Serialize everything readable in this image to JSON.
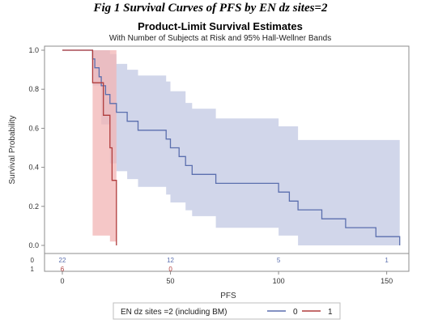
{
  "figure": {
    "caption": "Fig 1 Survival Curves of PFS by EN dz sites=2"
  },
  "chart_data": {
    "type": "line",
    "title": "Product-Limit Survival Estimates",
    "subtitle": "With Number of Subjects at Risk and 95% Hall-Wellner Bands",
    "xlabel": "PFS",
    "ylabel": "Survival Probability",
    "xlim": [
      0,
      158
    ],
    "ylim": [
      0,
      1.0
    ],
    "x_ticks": [
      0,
      50,
      100,
      150
    ],
    "x_tick_labels": [
      "0",
      "50",
      "100",
      "150"
    ],
    "y_ticks": [
      0,
      0.2,
      0.4,
      0.6,
      0.8,
      1.0
    ],
    "y_tick_labels": [
      "0.0",
      "0.2",
      "0.4",
      "0.6",
      "0.8",
      "1.0"
    ],
    "grid": false,
    "legend": {
      "title": "EN dz sites =2 (including BM)",
      "position": "bottom",
      "entries": [
        "0",
        "1"
      ]
    },
    "series": [
      {
        "name": "0",
        "color": "#5b6fae",
        "band_color": "#c9cfe6",
        "steps": [
          [
            0,
            1.0
          ],
          [
            14,
            1.0
          ],
          [
            14,
            0.955
          ],
          [
            15,
            0.955
          ],
          [
            15,
            0.91
          ],
          [
            17,
            0.91
          ],
          [
            17,
            0.864
          ],
          [
            18,
            0.864
          ],
          [
            18,
            0.818
          ],
          [
            20,
            0.818
          ],
          [
            20,
            0.773
          ],
          [
            22,
            0.773
          ],
          [
            22,
            0.727
          ],
          [
            25,
            0.727
          ],
          [
            25,
            0.682
          ],
          [
            30,
            0.682
          ],
          [
            30,
            0.636
          ],
          [
            35,
            0.636
          ],
          [
            35,
            0.59
          ],
          [
            48,
            0.59
          ],
          [
            48,
            0.545
          ],
          [
            50,
            0.545
          ],
          [
            50,
            0.5
          ],
          [
            54,
            0.5
          ],
          [
            54,
            0.455
          ],
          [
            57,
            0.455
          ],
          [
            57,
            0.409
          ],
          [
            60,
            0.409
          ],
          [
            60,
            0.364
          ],
          [
            71,
            0.364
          ],
          [
            71,
            0.318
          ],
          [
            100,
            0.318
          ],
          [
            100,
            0.273
          ],
          [
            105,
            0.273
          ],
          [
            105,
            0.227
          ],
          [
            109,
            0.227
          ],
          [
            109,
            0.182
          ],
          [
            120,
            0.182
          ],
          [
            120,
            0.136
          ],
          [
            131,
            0.136
          ],
          [
            131,
            0.091
          ],
          [
            145,
            0.091
          ],
          [
            145,
            0.045
          ],
          [
            156,
            0.045
          ],
          [
            156,
            0.0
          ]
        ],
        "band": [
          [
            0,
            1.0,
            1.0
          ],
          [
            14,
            1.0,
            0.82
          ],
          [
            18,
            1.0,
            0.62
          ],
          [
            22,
            0.98,
            0.42
          ],
          [
            25,
            0.93,
            0.38
          ],
          [
            30,
            0.9,
            0.34
          ],
          [
            35,
            0.87,
            0.3
          ],
          [
            48,
            0.84,
            0.26
          ],
          [
            50,
            0.79,
            0.22
          ],
          [
            57,
            0.73,
            0.18
          ],
          [
            60,
            0.7,
            0.15
          ],
          [
            71,
            0.65,
            0.09
          ],
          [
            100,
            0.61,
            0.05
          ],
          [
            109,
            0.54,
            0.0
          ],
          [
            156,
            0.5,
            0.0
          ]
        ],
        "at_risk": [
          {
            "x": 0,
            "n": "22"
          },
          {
            "x": 50,
            "n": "12"
          },
          {
            "x": 100,
            "n": "5"
          },
          {
            "x": 150,
            "n": "1"
          }
        ]
      },
      {
        "name": "1",
        "color": "#b03c3c",
        "band_color": "#f2b4b4",
        "steps": [
          [
            0,
            1.0
          ],
          [
            14,
            1.0
          ],
          [
            14,
            0.833
          ],
          [
            19,
            0.833
          ],
          [
            19,
            0.667
          ],
          [
            22,
            0.667
          ],
          [
            22,
            0.5
          ],
          [
            23,
            0.5
          ],
          [
            23,
            0.333
          ],
          [
            25,
            0.333
          ],
          [
            25,
            0.0
          ]
        ],
        "band": [
          [
            0,
            1.0,
            1.0
          ],
          [
            14,
            1.0,
            0.05
          ],
          [
            19,
            1.0,
            0.05
          ],
          [
            22,
            1.0,
            0.02
          ],
          [
            25,
            0.92,
            0.0
          ]
        ],
        "at_risk": [
          {
            "x": 0,
            "n": "6"
          },
          {
            "x": 50,
            "n": "0"
          }
        ]
      }
    ]
  }
}
